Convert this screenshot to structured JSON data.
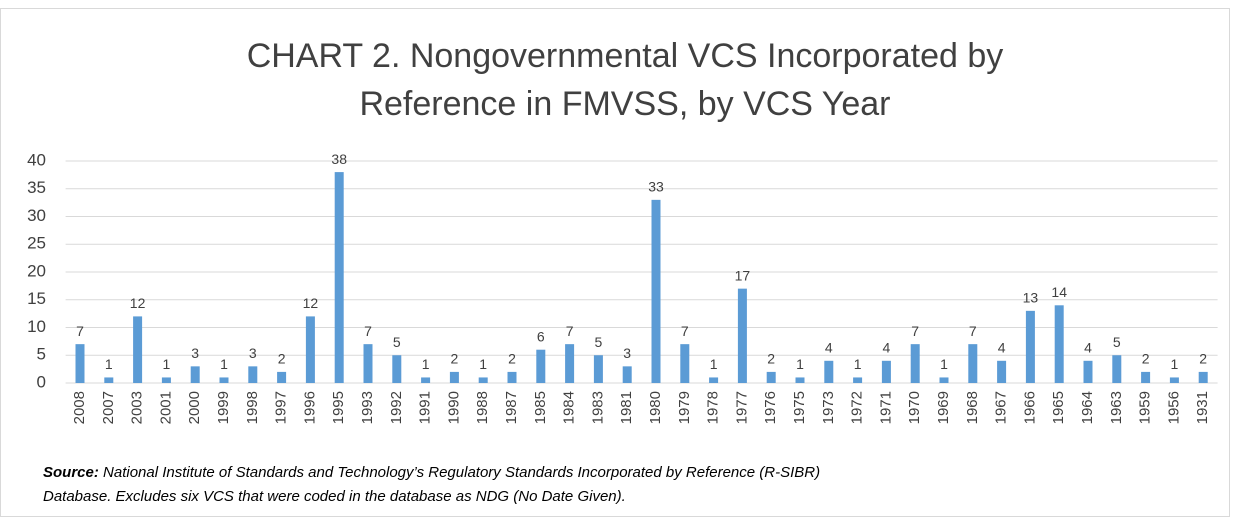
{
  "chart_data": {
    "type": "bar",
    "title": [
      "CHART 2. Nongovernmental VCS Incorporated by",
      "Reference in FMVSS, by VCS Year"
    ],
    "categories": [
      "2008",
      "2007",
      "2003",
      "2001",
      "2000",
      "1999",
      "1998",
      "1997",
      "1996",
      "1995",
      "1993",
      "1992",
      "1991",
      "1990",
      "1988",
      "1987",
      "1985",
      "1984",
      "1983",
      "1981",
      "1980",
      "1979",
      "1978",
      "1977",
      "1976",
      "1975",
      "1973",
      "1972",
      "1971",
      "1970",
      "1969",
      "1968",
      "1967",
      "1966",
      "1965",
      "1964",
      "1963",
      "1959",
      "1956",
      "1931"
    ],
    "values": [
      7,
      1,
      12,
      1,
      3,
      1,
      3,
      2,
      12,
      38,
      7,
      5,
      1,
      2,
      1,
      2,
      6,
      7,
      5,
      3,
      33,
      7,
      1,
      17,
      2,
      1,
      4,
      1,
      4,
      7,
      1,
      7,
      4,
      13,
      14,
      4,
      5,
      2,
      1,
      2
    ],
    "color": "#5b9bd5",
    "ylim": [
      0,
      40
    ],
    "yticks": [
      0,
      5,
      10,
      15,
      20,
      25,
      30,
      35,
      40
    ],
    "grid": true,
    "source_label": "Source:",
    "source_lines": [
      "National Institute of Standards and Technology’s Regulatory Standards Incorporated by Reference (R-SIBR)",
      "Database. Excludes six VCS that were coded in the database as NDG (No Date Given)."
    ]
  }
}
